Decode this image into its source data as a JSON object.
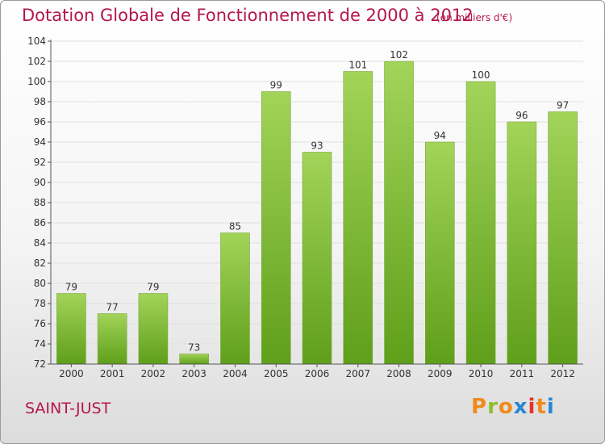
{
  "title": "Dotation Globale de Fonctionnement de 2000 à 2012",
  "unit_note": "(en milliers d'€)",
  "commune": "SAINT-JUST",
  "brand": {
    "letters": [
      "P",
      "r",
      "o",
      "x",
      "i",
      "t",
      "i"
    ],
    "colors": [
      "#f08a1c",
      "#8bbf2c",
      "#f08a1c",
      "#2a86d1",
      "#e8312a",
      "#f08a1c",
      "#2a86d1"
    ]
  },
  "colors": {
    "bar_light": "#a2d45a",
    "bar_dark": "#5f9f1a",
    "title": "#b5164c",
    "axis": "#555555",
    "grid": "#e0e0e0"
  },
  "chart_data": {
    "type": "bar",
    "categories": [
      "2000",
      "2001",
      "2002",
      "2003",
      "2004",
      "2005",
      "2006",
      "2007",
      "2008",
      "2009",
      "2010",
      "2011",
      "2012"
    ],
    "values": [
      79,
      77,
      79,
      73,
      85,
      99,
      93,
      101,
      102,
      94,
      100,
      96,
      97
    ],
    "ylim": [
      72,
      104
    ],
    "yticks": [
      72,
      74,
      76,
      78,
      80,
      82,
      84,
      86,
      88,
      90,
      92,
      94,
      96,
      98,
      100,
      102,
      104
    ],
    "grid": true,
    "data_labels": true
  }
}
